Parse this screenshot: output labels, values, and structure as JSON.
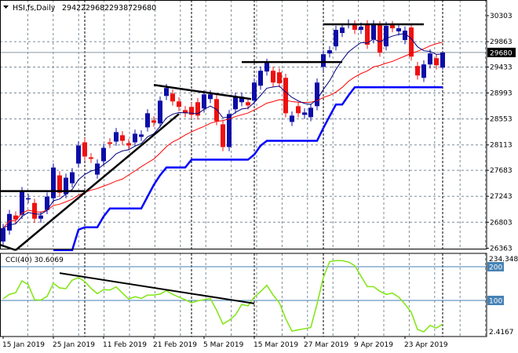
{
  "header": {
    "symbol": "HSI,fs,Daily",
    "open": "29422",
    "high": "29682",
    "low": "29387",
    "close": "29680"
  },
  "colors": {
    "bull": "#0c0ca8",
    "bear": "#ee1111",
    "ma_fast": "#000080",
    "ma_slow": "#ff0000",
    "support": "#0000ff",
    "cci": "#86e61c",
    "cci_levels": "#4682b4",
    "trendline": "#000000",
    "price_label_bg": "#000000"
  },
  "chart_data": [
    {
      "type": "candlestick",
      "title": "HSI,fs,Daily",
      "ylim": [
        26363,
        30303
      ],
      "y_ticks": [
        "30303",
        "29863",
        "29433",
        "28993",
        "28553",
        "28113",
        "27683",
        "27243",
        "26803",
        "26363"
      ],
      "y_tick_values": [
        30303,
        29863,
        29433,
        28993,
        28553,
        28113,
        27683,
        27243,
        26803,
        26363
      ],
      "current_price_label": "29680",
      "current_price": 29680,
      "x_labels": [
        "15 Jan 2019",
        "25 Jan 2019",
        "11 Feb 2019",
        "21 Feb 2019",
        "5 Mar 2019",
        "15 Mar 2019",
        "27 Mar 2019",
        "9 Apr 2019",
        "23 Apr 2019"
      ],
      "x_label_candle_index": [
        0,
        8,
        16,
        24,
        32,
        40,
        48,
        56,
        64
      ],
      "separator_candle_index": [
        13,
        30,
        40,
        51,
        70
      ],
      "wick_pts": 70,
      "candles_oc": [
        [
          26477,
          26703
        ],
        [
          26663,
          26943
        ],
        [
          26917,
          26850
        ],
        [
          26930,
          27330
        ],
        [
          27197,
          27210
        ],
        [
          27130,
          26863
        ],
        [
          26863,
          26917
        ],
        [
          27010,
          27237
        ],
        [
          27210,
          27730
        ],
        [
          27597,
          27303
        ],
        [
          27277,
          27557
        ],
        [
          27463,
          27650
        ],
        [
          27797,
          28103
        ],
        [
          28157,
          27917
        ],
        [
          27903,
          27877
        ],
        [
          27610,
          27797
        ],
        [
          27837,
          28063
        ],
        [
          28157,
          28130
        ],
        [
          28170,
          28330
        ],
        [
          28277,
          28183
        ],
        [
          28143,
          28103
        ],
        [
          28157,
          28303
        ],
        [
          28250,
          28290
        ],
        [
          28410,
          28650
        ],
        [
          28530,
          28490
        ],
        [
          28477,
          28863
        ],
        [
          28943,
          29077
        ],
        [
          28983,
          28850
        ],
        [
          28850,
          28757
        ],
        [
          28703,
          28650
        ],
        [
          28757,
          28623
        ],
        [
          28837,
          28610
        ],
        [
          28730,
          28970
        ],
        [
          28890,
          28970
        ],
        [
          28890,
          28517
        ],
        [
          28463,
          28077
        ],
        [
          28077,
          28637
        ],
        [
          28717,
          28930
        ],
        [
          28837,
          28930
        ],
        [
          28837,
          28783
        ],
        [
          28863,
          29170
        ],
        [
          29117,
          29370
        ],
        [
          29357,
          29503
        ],
        [
          29370,
          29170
        ],
        [
          29343,
          29157
        ],
        [
          29250,
          28650
        ],
        [
          28503,
          28610
        ],
        [
          28770,
          28650
        ],
        [
          28623,
          28663
        ],
        [
          28583,
          28743
        ],
        [
          28770,
          29170
        ],
        [
          29437,
          29650
        ],
        [
          29663,
          29717
        ],
        [
          29783,
          30063
        ],
        [
          30010,
          30103
        ],
        [
          30157,
          30170
        ],
        [
          30157,
          30063
        ],
        [
          30063,
          30117
        ],
        [
          30157,
          29810
        ],
        [
          29903,
          30157
        ],
        [
          30143,
          29677
        ],
        [
          29783,
          30130
        ],
        [
          30143,
          30090
        ],
        [
          30037,
          30090
        ],
        [
          29890,
          30050
        ],
        [
          30103,
          29610
        ],
        [
          29450,
          29290
        ],
        [
          29250,
          29477
        ],
        [
          29477,
          29663
        ],
        [
          29583,
          29463
        ],
        [
          29422,
          29680
        ]
      ],
      "last_candle": {
        "o": 29422,
        "h": 29682,
        "l": 29387,
        "c": 29680
      },
      "ma_fast_period": 8,
      "ma_slow_period": 20,
      "support_line": [
        null,
        null,
        null,
        null,
        null,
        null,
        null,
        null,
        26330,
        26330,
        26330,
        26330,
        26677,
        26717,
        26717,
        26717,
        26900,
        27037,
        27037,
        27037,
        27037,
        27037,
        27037,
        27237,
        27437,
        27600,
        27730,
        27730,
        27730,
        27730,
        27863,
        27863,
        27863,
        27863,
        27863,
        27863,
        27863,
        27863,
        27863,
        27863,
        27950,
        28100,
        28183,
        28183,
        28183,
        28183,
        28183,
        28183,
        28183,
        28183,
        28183,
        28400,
        28600,
        28797,
        28797,
        28950,
        29090,
        29090,
        29090,
        29090,
        29090,
        29090,
        29090,
        29090,
        29090,
        29090,
        29090,
        29090,
        29090,
        29090,
        29090
      ],
      "horizontal_lines": [
        {
          "price": 27330,
          "from": -1,
          "to": 13
        },
        {
          "price": 29517,
          "from": 38,
          "to": 54
        },
        {
          "price": 30157,
          "from": 51,
          "to": 67
        }
      ],
      "trendlines": [
        {
          "p1": [
            2,
            26330
          ],
          "p2": [
            28,
            28637
          ]
        },
        {
          "p1": [
            -0.5,
            26420
          ],
          "p2": [
            2,
            26330
          ]
        },
        {
          "p1": [
            24,
            29130
          ],
          "p2": [
            39.5,
            28890
          ]
        }
      ]
    },
    {
      "type": "line",
      "title": "CCI(40) 30.6069",
      "label": "CCI(40)",
      "value_label": "30.6069",
      "ylim": [
        2.4167,
        234.3487
      ],
      "y_ticks": [
        "234.3487",
        "200",
        "100",
        "2.4167"
      ],
      "levels": [
        200,
        100
      ],
      "level_labels": [
        "200",
        "100"
      ],
      "values": [
        105,
        118,
        123,
        158,
        147,
        102,
        101,
        112,
        151,
        137,
        135,
        160,
        168,
        156,
        136,
        120,
        132,
        131,
        140,
        122,
        104,
        111,
        106,
        116,
        116,
        119,
        129,
        118,
        110,
        102,
        93,
        99,
        102,
        106,
        71,
        30,
        41,
        57,
        88,
        84,
        110,
        126,
        145,
        116,
        93,
        46,
        9,
        13,
        16,
        20,
        90,
        168,
        215,
        218,
        218,
        214,
        203,
        172,
        141,
        141,
        127,
        118,
        122,
        110,
        89,
        65,
        14,
        7,
        26,
        18,
        30
      ],
      "trendline": {
        "p1": [
          9,
          181
        ],
        "p2": [
          40,
          91
        ]
      }
    }
  ]
}
